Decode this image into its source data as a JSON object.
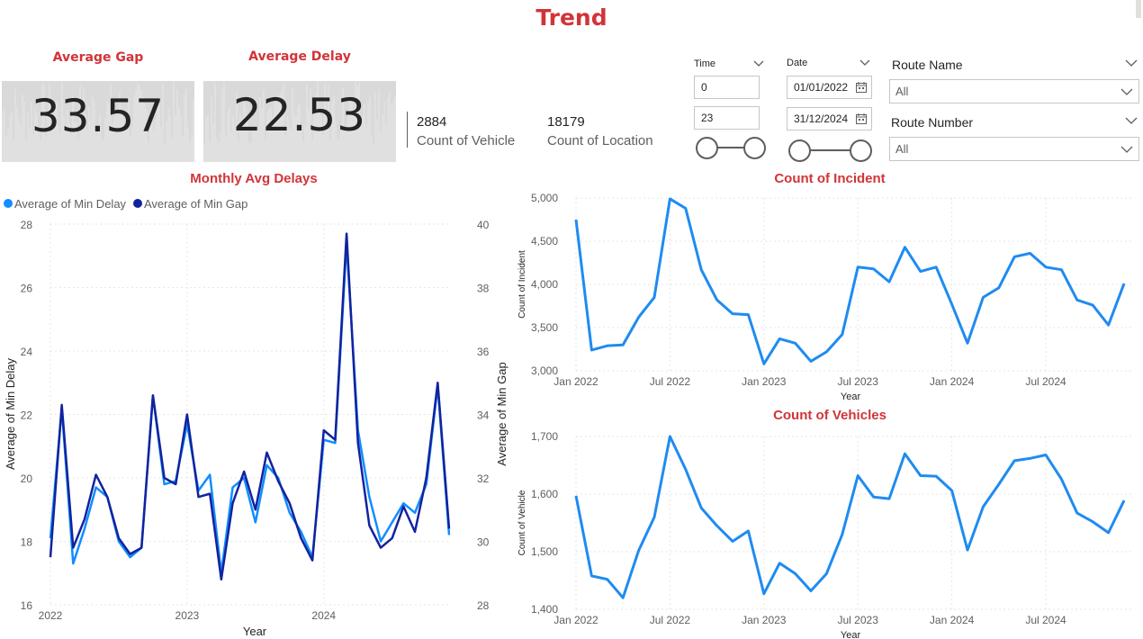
{
  "page": {
    "title": "Trend"
  },
  "kpis": [
    {
      "title": "Average Gap",
      "value": "33.57"
    },
    {
      "title": "Average Delay",
      "value": "22.53"
    }
  ],
  "stats": [
    {
      "value": "2884",
      "label": "Count of Vehicle"
    },
    {
      "value": "18179",
      "label": "Count of Location"
    }
  ],
  "slicers": {
    "time": {
      "title": "Time",
      "min": "0",
      "max": "23"
    },
    "date": {
      "title": "Date",
      "start": "01/01/2022",
      "end": "31/12/2024"
    },
    "route_name": {
      "title": "Route Name",
      "selected": "All"
    },
    "route_number": {
      "title": "Route Number",
      "selected": "All"
    }
  },
  "icons": {
    "chevron": "chevron-down-icon",
    "calendar": "calendar-icon"
  },
  "colors": {
    "title_red": "#d13438",
    "series_light": "#118dff",
    "series_dark": "#12239e",
    "line_blue": "#1f8bf0"
  },
  "chart_data": [
    {
      "type": "line",
      "title": "Monthly Avg Delays",
      "xlabel": "Year",
      "ylabel": "Average of Min Delay",
      "y2label": "Average of Min Gap",
      "x_ticks": [
        "2022",
        "2023",
        "2024"
      ],
      "ylim": [
        16,
        28
      ],
      "y_ticks": [
        "16",
        "18",
        "20",
        "22",
        "24",
        "26",
        "28"
      ],
      "y2lim": [
        28,
        40
      ],
      "y2_ticks": [
        "28",
        "30",
        "32",
        "34",
        "36",
        "38",
        "40"
      ],
      "legend": "top-left",
      "x": [
        "2022-01",
        "2022-02",
        "2022-03",
        "2022-04",
        "2022-05",
        "2022-06",
        "2022-07",
        "2022-08",
        "2022-09",
        "2022-10",
        "2022-11",
        "2022-12",
        "2023-01",
        "2023-02",
        "2023-03",
        "2023-04",
        "2023-05",
        "2023-06",
        "2023-07",
        "2023-08",
        "2023-09",
        "2023-10",
        "2023-11",
        "2023-12",
        "2024-01",
        "2024-02",
        "2024-03",
        "2024-04",
        "2024-05",
        "2024-06",
        "2024-07",
        "2024-08",
        "2024-09",
        "2024-10",
        "2024-11",
        "2024-12"
      ],
      "series": [
        {
          "name": "Average of Min Delay",
          "axis": "left",
          "values": [
            18.1,
            22.2,
            17.3,
            18.4,
            19.7,
            19.4,
            18.0,
            17.5,
            17.8,
            22.6,
            19.8,
            19.9,
            21.7,
            19.6,
            20.1,
            17.0,
            19.7,
            20.0,
            18.6,
            20.4,
            20.0,
            18.9,
            18.3,
            17.5,
            21.2,
            21.1,
            27.4,
            21.5,
            19.4,
            18.0,
            18.6,
            19.2,
            18.9,
            19.8,
            22.9,
            18.2
          ]
        },
        {
          "name": "Average of Min Gap",
          "axis": "right",
          "values": [
            29.5,
            34.3,
            29.8,
            30.7,
            32.1,
            31.4,
            30.1,
            29.6,
            29.8,
            34.6,
            32.0,
            31.8,
            34.0,
            31.4,
            31.5,
            28.8,
            31.2,
            32.2,
            31.0,
            32.8,
            31.9,
            31.2,
            30.1,
            29.4,
            33.5,
            33.2,
            39.7,
            33.1,
            30.5,
            29.8,
            30.1,
            31.1,
            30.3,
            32.0,
            35.0,
            30.4
          ]
        }
      ]
    },
    {
      "type": "line",
      "title": "Count of Incident",
      "xlabel": "Year",
      "ylabel": "Count of Incident",
      "x_ticks": [
        "Jan 2022",
        "Jul 2022",
        "Jan 2023",
        "Jul 2023",
        "Jan 2024",
        "Jul 2024"
      ],
      "ylim": [
        3000,
        5000
      ],
      "y_ticks": [
        "3,000",
        "3,500",
        "4,000",
        "4,500",
        "5,000"
      ],
      "x": [
        "2022-01",
        "2022-02",
        "2022-03",
        "2022-04",
        "2022-05",
        "2022-06",
        "2022-07",
        "2022-08",
        "2022-09",
        "2022-10",
        "2022-11",
        "2022-12",
        "2023-01",
        "2023-02",
        "2023-03",
        "2023-04",
        "2023-05",
        "2023-06",
        "2023-07",
        "2023-08",
        "2023-09",
        "2023-10",
        "2023-11",
        "2023-12",
        "2024-01",
        "2024-02",
        "2024-03",
        "2024-04",
        "2024-05",
        "2024-06",
        "2024-07",
        "2024-08",
        "2024-09",
        "2024-10",
        "2024-11",
        "2024-12"
      ],
      "series": [
        {
          "values": [
            4750,
            3240,
            3290,
            3300,
            3620,
            3850,
            4990,
            4880,
            4170,
            3820,
            3660,
            3650,
            3080,
            3370,
            3320,
            3110,
            3220,
            3420,
            4200,
            4180,
            4030,
            4430,
            4150,
            4200,
            3770,
            3320,
            3850,
            3960,
            4320,
            4360,
            4200,
            4170,
            3820,
            3760,
            3530,
            4010
          ]
        }
      ]
    },
    {
      "type": "line",
      "title": "Count of Vehicles",
      "xlabel": "Year",
      "ylabel": "Count of Vehicle",
      "x_ticks": [
        "Jan 2022",
        "Jul 2022",
        "Jan 2023",
        "Jul 2023",
        "Jan 2024",
        "Jul 2024"
      ],
      "ylim": [
        1400,
        1700
      ],
      "y_ticks": [
        "1,400",
        "1,500",
        "1,600",
        "1,700"
      ],
      "x": [
        "2022-01",
        "2022-02",
        "2022-03",
        "2022-04",
        "2022-05",
        "2022-06",
        "2022-07",
        "2022-08",
        "2022-09",
        "2022-10",
        "2022-11",
        "2022-12",
        "2023-01",
        "2023-02",
        "2023-03",
        "2023-04",
        "2023-05",
        "2023-06",
        "2023-07",
        "2023-08",
        "2023-09",
        "2023-10",
        "2023-11",
        "2023-12",
        "2024-01",
        "2024-02",
        "2024-03",
        "2024-04",
        "2024-05",
        "2024-06",
        "2024-07",
        "2024-08",
        "2024-09",
        "2024-10",
        "2024-11",
        "2024-12"
      ],
      "series": [
        {
          "values": [
            1597,
            1458,
            1452,
            1420,
            1502,
            1560,
            1700,
            1643,
            1576,
            1545,
            1518,
            1536,
            1427,
            1480,
            1462,
            1432,
            1462,
            1530,
            1632,
            1595,
            1592,
            1670,
            1632,
            1631,
            1606,
            1503,
            1578,
            1617,
            1658,
            1662,
            1668,
            1626,
            1567,
            1552,
            1533,
            1589
          ]
        }
      ]
    }
  ]
}
